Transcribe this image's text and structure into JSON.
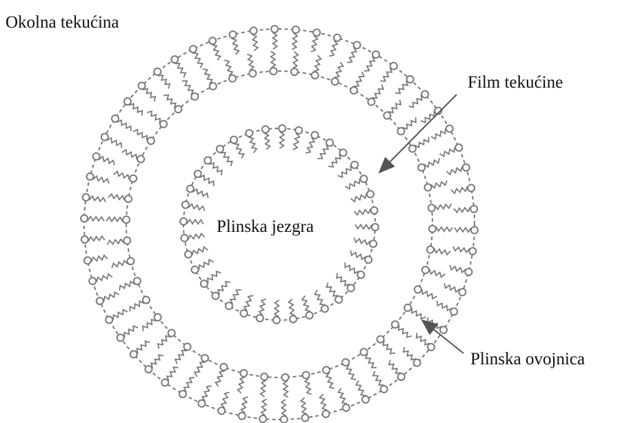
{
  "labels": {
    "surrounding_fluid": "Okolna tekućina",
    "liquid_film": "Film tekućine",
    "gas_core": "Plinska jezgra",
    "gas_shell": "Plinska ovojnica"
  }
}
